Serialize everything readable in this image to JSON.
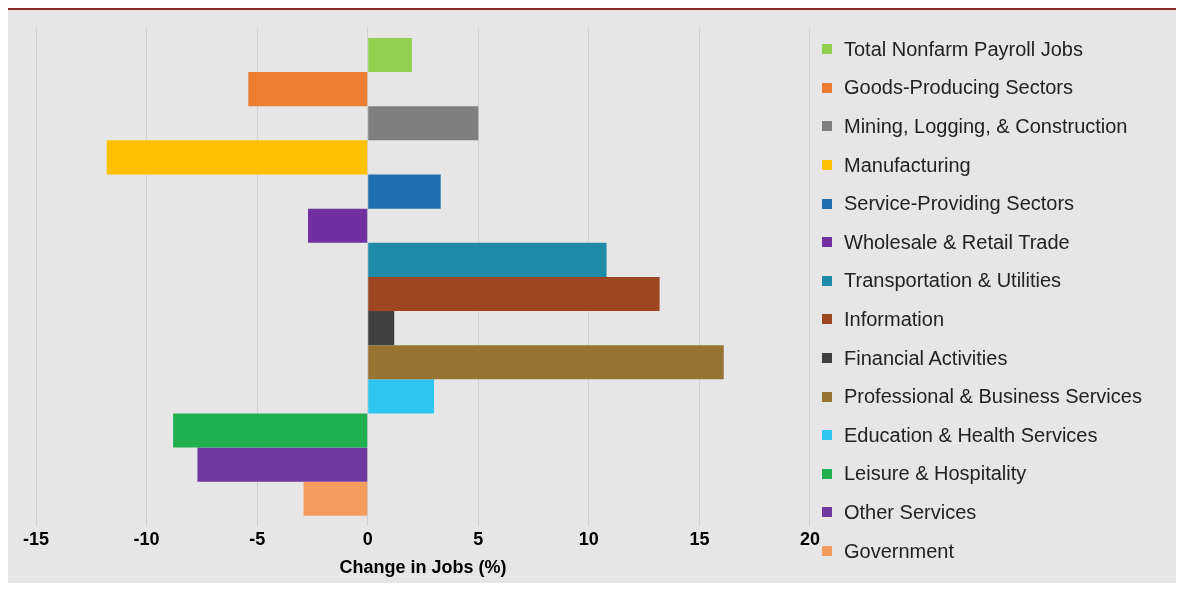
{
  "chart_data": {
    "type": "bar",
    "orientation": "horizontal",
    "xlabel": "Change in Jobs (%)",
    "categories": [
      null
    ],
    "xlim": [
      -15,
      20
    ],
    "xticks": [
      -15,
      -10,
      -5,
      0,
      5,
      10,
      15,
      20
    ],
    "grid": "x",
    "legend": "right",
    "tick_labels": "x",
    "series": [
      {
        "name": "Total Nonfarm Payroll Jobs",
        "color": "#92d050",
        "values": [
          2.0
        ]
      },
      {
        "name": "Goods-Producing Sectors",
        "color": "#ed7d31",
        "values": [
          -5.4
        ]
      },
      {
        "name": "Mining, Logging, & Construction",
        "color": "#7f7f7f",
        "values": [
          5.0
        ]
      },
      {
        "name": "Manufacturing",
        "color": "#ffc000",
        "values": [
          -11.8
        ]
      },
      {
        "name": "Service-Providing Sectors",
        "color": "#1f6fb0",
        "values": [
          3.3
        ]
      },
      {
        "name": "Wholesale & Retail Trade",
        "color": "#7030a0",
        "values": [
          -2.7
        ]
      },
      {
        "name": "Transportation & Utilities",
        "color": "#1e8ba8",
        "values": [
          10.8
        ]
      },
      {
        "name": "Information",
        "color": "#9e4522",
        "values": [
          13.2
        ]
      },
      {
        "name": "Financial Activities",
        "color": "#404040",
        "values": [
          1.2
        ]
      },
      {
        "name": "Professional & Business Services",
        "color": "#977432",
        "values": [
          16.1
        ]
      },
      {
        "name": "Education & Health Services",
        "color": "#2ec5f0",
        "values": [
          3.0
        ]
      },
      {
        "name": "Leisure & Hospitality",
        "color": "#20b050",
        "values": [
          -8.8
        ]
      },
      {
        "name": "Other Services",
        "color": "#70389e",
        "values": [
          -7.7
        ]
      },
      {
        "name": "Government",
        "color": "#f49c5e",
        "values": [
          -2.9
        ]
      }
    ]
  }
}
